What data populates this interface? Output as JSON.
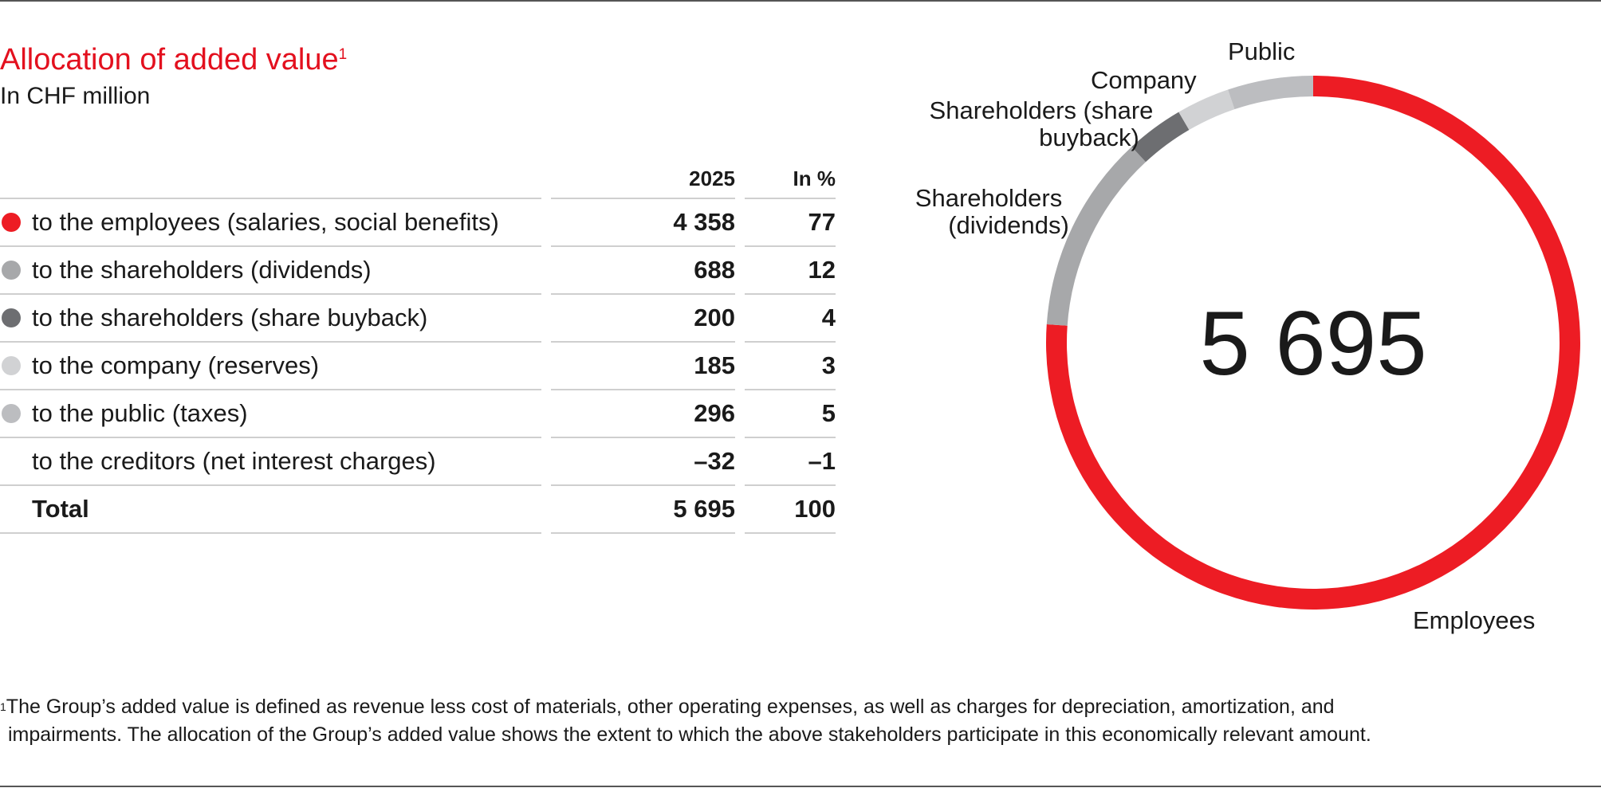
{
  "title": "Allocation of added value",
  "title_footnote_mark": "1",
  "subtitle": "In CHF million",
  "table": {
    "headers": [
      "",
      "2025",
      "In %"
    ],
    "rows": [
      {
        "label": "to the employees (salaries, social benefits)",
        "value": "4 358",
        "pct": "77",
        "color": "#ed1c24"
      },
      {
        "label": "to the shareholders (dividends)",
        "value": "688",
        "pct": "12",
        "color": "#a7a8aa"
      },
      {
        "label": "to the shareholders (share buyback)",
        "value": "200",
        "pct": "4",
        "color": "#6d6e71"
      },
      {
        "label": "to the company (reserves)",
        "value": "185",
        "pct": "3",
        "color": "#d1d2d4"
      },
      {
        "label": "to the public (taxes)",
        "value": "296",
        "pct": "5",
        "color": "#bcbdc0"
      },
      {
        "label": "to the creditors (net interest charges)",
        "value": "–32",
        "pct": "–1",
        "color": null
      }
    ],
    "total": {
      "label": "Total",
      "value": "5 695",
      "pct": "100"
    }
  },
  "chart_data": {
    "type": "pie",
    "donut": true,
    "center_label": "5 695",
    "start": "top",
    "direction": "clockwise",
    "slices": [
      {
        "name": "Employees",
        "value": 4358,
        "color": "#ed1c24"
      },
      {
        "name": "Shareholders (dividends)",
        "value": 688,
        "color": "#a7a8aa"
      },
      {
        "name": "Shareholders (share buyback)",
        "value": 200,
        "color": "#6d6e71"
      },
      {
        "name": "Company",
        "value": 185,
        "color": "#d1d2d4"
      },
      {
        "name": "Public",
        "value": 296,
        "color": "#bcbdc0"
      }
    ],
    "labels": {
      "employees": "Employees",
      "dividends_1": "Shareholders",
      "dividends_2": "(dividends)",
      "buyback_1": "Shareholders (share",
      "buyback_2": "buyback)",
      "company": "Company",
      "public": "Public"
    }
  },
  "footnote": {
    "mark": "1",
    "line1": "The Group’s added value is defined as revenue less cost of materials, other operating expenses, as well as charges for depreciation, amortization, and",
    "line2": "impairments. The allocation of the Group’s added value shows the extent to which the above stakeholders participate in this economically relevant amount."
  }
}
